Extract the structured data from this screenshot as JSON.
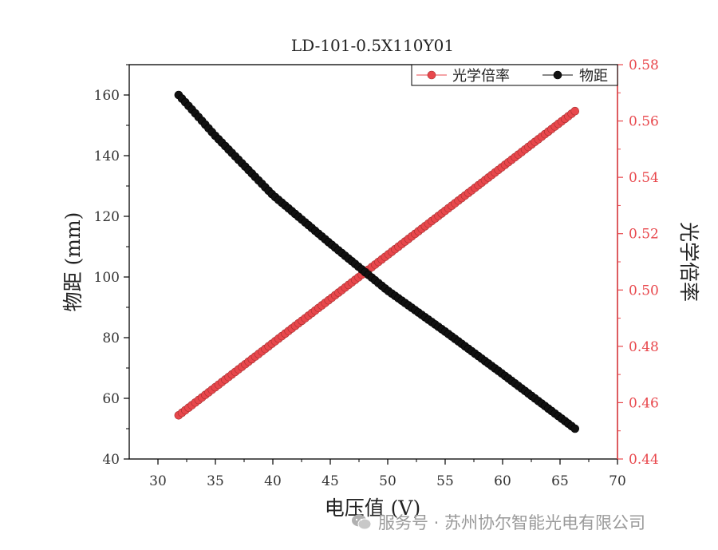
{
  "chart_data": {
    "type": "scatter",
    "title": "LD-101-0.5X110Y01",
    "xlabel": "电压值 (V)",
    "ylabel_left": "物距 (mm)",
    "ylabel_right": "光学倍率",
    "xlim": [
      27.5,
      70
    ],
    "ylim_left": [
      40,
      170
    ],
    "ylim_right": [
      0.44,
      0.58
    ],
    "x_ticks": [
      30,
      35,
      40,
      45,
      50,
      55,
      60,
      65,
      70
    ],
    "y_left_ticks": [
      40,
      60,
      80,
      100,
      120,
      140,
      160
    ],
    "y_right_ticks": [
      "0.44",
      "0.46",
      "0.48",
      "0.50",
      "0.52",
      "0.54",
      "0.56",
      "0.58"
    ],
    "legend_position": "top-right",
    "grid": false,
    "series": [
      {
        "name": "光学倍率",
        "axis": "right",
        "color": "#e8474c",
        "x_range": [
          31.8,
          66.3
        ],
        "points": 120,
        "y_start": 0.4555,
        "y_end": 0.5635
      },
      {
        "name": "物距",
        "axis": "left",
        "color": "#111111",
        "x_range": [
          31.8,
          66.3
        ],
        "points": 120,
        "curve": [
          [
            31.8,
            160
          ],
          [
            33,
            155
          ],
          [
            35,
            146.5
          ],
          [
            40,
            127
          ],
          [
            45,
            111
          ],
          [
            50,
            95.5
          ],
          [
            55,
            82
          ],
          [
            60,
            68
          ],
          [
            66.3,
            50
          ]
        ]
      }
    ]
  },
  "watermark": {
    "text": "服务号 · 苏州协尔智能光电有限公司",
    "icon": "wechat-icon"
  }
}
